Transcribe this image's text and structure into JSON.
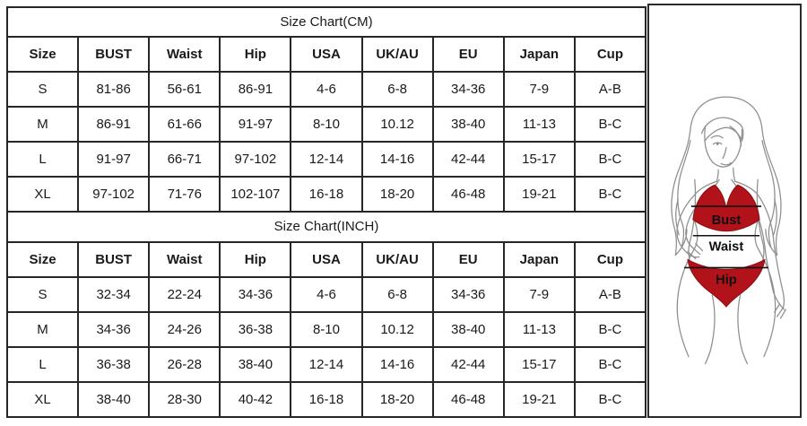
{
  "tables": [
    {
      "title": "Size Chart(CM)",
      "columns": [
        "Size",
        "BUST",
        "Waist",
        "Hip",
        "USA",
        "UK/AU",
        "EU",
        "Japan",
        "Cup"
      ],
      "rows": [
        [
          "S",
          "81-86",
          "56-61",
          "86-91",
          "4-6",
          "6-8",
          "34-36",
          "7-9",
          "A-B"
        ],
        [
          "M",
          "86-91",
          "61-66",
          "91-97",
          "8-10",
          "10.12",
          "38-40",
          "11-13",
          "B-C"
        ],
        [
          "L",
          "91-97",
          "66-71",
          "97-102",
          "12-14",
          "14-16",
          "42-44",
          "15-17",
          "B-C"
        ],
        [
          "XL",
          "97-102",
          "71-76",
          "102-107",
          "16-18",
          "18-20",
          "46-48",
          "19-21",
          "B-C"
        ]
      ]
    },
    {
      "title": "Size Chart(INCH)",
      "columns": [
        "Size",
        "BUST",
        "Waist",
        "Hip",
        "USA",
        "UK/AU",
        "EU",
        "Japan",
        "Cup"
      ],
      "rows": [
        [
          "S",
          "32-34",
          "22-24",
          "34-36",
          "4-6",
          "6-8",
          "34-36",
          "7-9",
          "A-B"
        ],
        [
          "M",
          "34-36",
          "24-26",
          "36-38",
          "8-10",
          "10.12",
          "38-40",
          "11-13",
          "B-C"
        ],
        [
          "L",
          "36-38",
          "26-28",
          "38-40",
          "12-14",
          "14-16",
          "42-44",
          "15-17",
          "B-C"
        ],
        [
          "XL",
          "38-40",
          "28-30",
          "40-42",
          "16-18",
          "18-20",
          "46-48",
          "19-21",
          "B-C"
        ]
      ]
    }
  ],
  "figure": {
    "bust_label": "Bust",
    "waist_label": "Waist",
    "hip_label": "Hip"
  },
  "colors": {
    "bikini_red": "#b2121a",
    "table_border": "#262626",
    "measure_line": "#111111",
    "line_art": "#8f8f8f"
  }
}
